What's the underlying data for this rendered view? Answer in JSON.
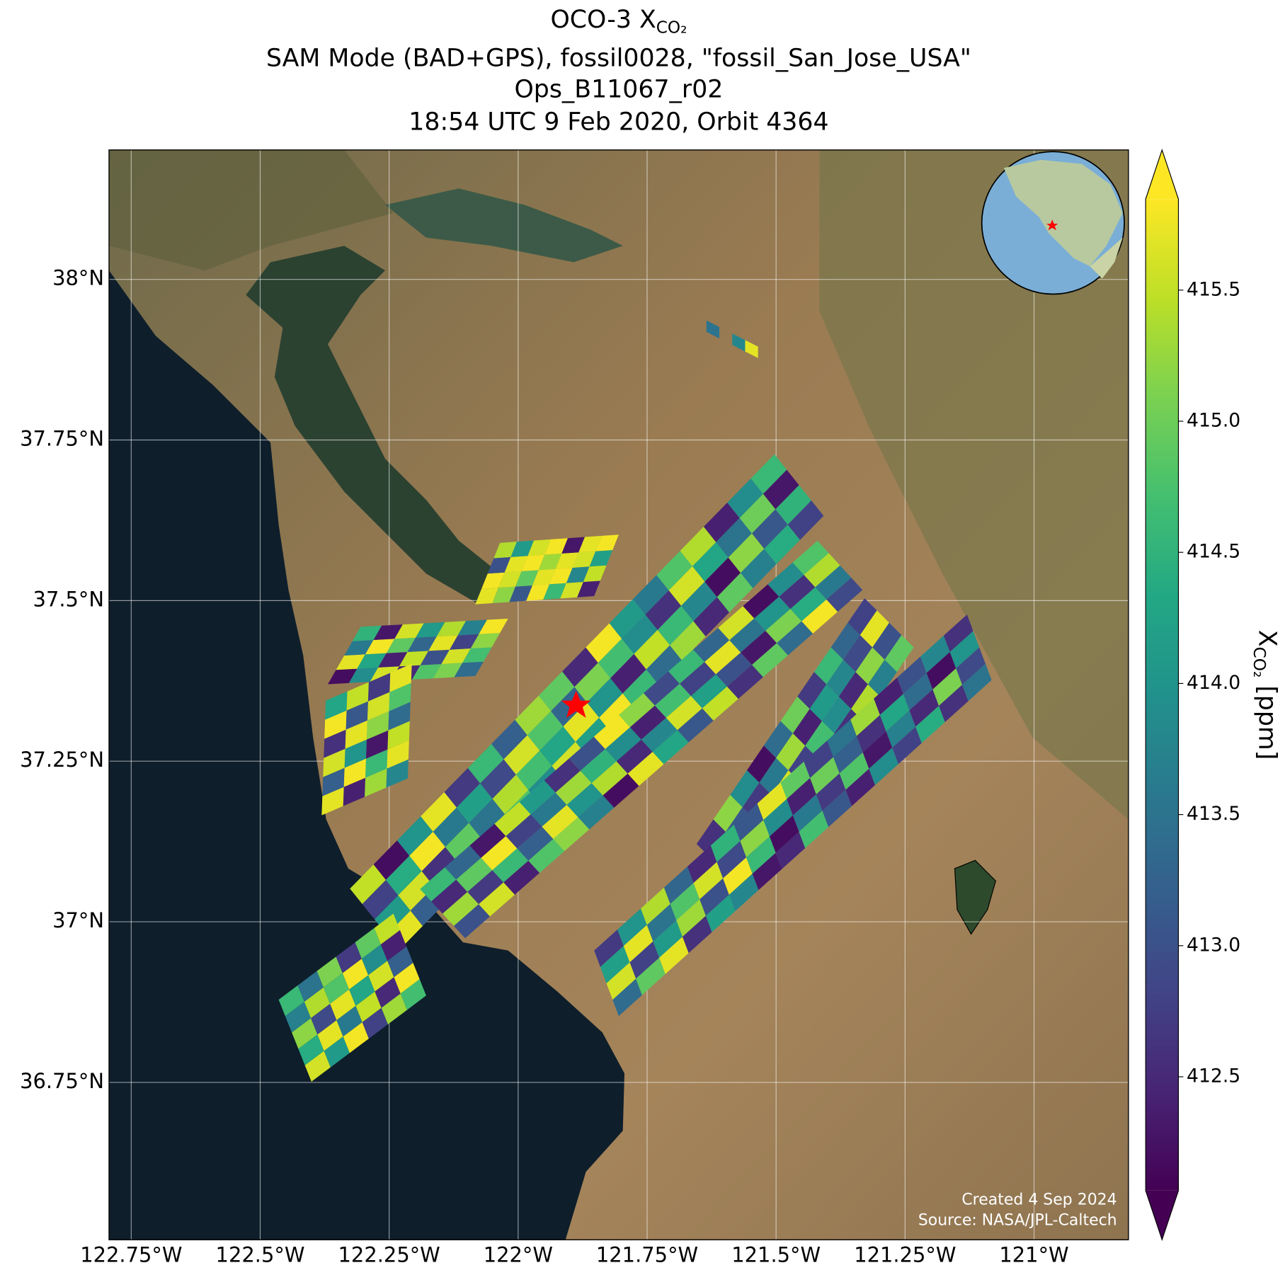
{
  "chart_data": {
    "type": "map",
    "title": [
      "OCO-3 X",
      "SAM Mode (BAD+GPS), fossil0028, \"fossil_San_Jose_USA\"",
      "Ops_B11067_r02",
      "18:54 UTC 9 Feb 2020, Orbit 4364"
    ],
    "title_subscript": "CO₂",
    "xlim": [
      -122.793,
      -120.817
    ],
    "ylim": [
      36.505,
      38.2015
    ],
    "xticks": [
      {
        "value": -122.75,
        "label": "122.75°W"
      },
      {
        "value": -122.5,
        "label": "122.5°W"
      },
      {
        "value": -122.25,
        "label": "122.25°W"
      },
      {
        "value": -122,
        "label": "122°W"
      },
      {
        "value": -121.75,
        "label": "121.75°W"
      },
      {
        "value": -121.5,
        "label": "121.5°W"
      },
      {
        "value": -121.25,
        "label": "121.25°W"
      },
      {
        "value": -121,
        "label": "121°W"
      }
    ],
    "yticks": [
      {
        "value": 36.75,
        "label": "36.75°N"
      },
      {
        "value": 37,
        "label": "37°N"
      },
      {
        "value": 37.25,
        "label": "37.25°N"
      },
      {
        "value": 37.5,
        "label": "37.5°N"
      },
      {
        "value": 37.75,
        "label": "37.75°N"
      },
      {
        "value": 38,
        "label": "38°N"
      }
    ],
    "grid": true,
    "colorbar": {
      "label": "X",
      "label_subscript": "CO₂",
      "label_unit": " [ppm]",
      "clim": [
        412.066,
        415.847
      ],
      "ticks": [
        415.5,
        {
          "value": 415,
          "label": "415.0"
        },
        414.5,
        {
          "value": 414,
          "label": "414.0"
        },
        413.5,
        {
          "value": 413,
          "label": "413.0"
        },
        412.5
      ]
    },
    "swaths": [
      {
        "values": [
          [
            415.7,
            415.2,
            413.1,
            415.8,
            414.6,
            415.6,
            412.4
          ],
          [
            415.8,
            415.6,
            414.9,
            415.7,
            415.8,
            413.8,
            415.5
          ],
          [
            413.0,
            415.7,
            415.8,
            415.3,
            415.7,
            415.6,
            414.2
          ],
          [
            415.4,
            414.1,
            415.6,
            415.8,
            412.3,
            415.7,
            415.8
          ]
        ]
      },
      {
        "values": [
          [
            412.2,
            413.9,
            415.6,
            412.5,
            414.8,
            415.1,
            413.4
          ],
          [
            415.7,
            414.3,
            412.4,
            415.5,
            413.0,
            415.6,
            414.7
          ],
          [
            413.6,
            415.8,
            414.9,
            413.3,
            415.7,
            412.8,
            415.2
          ],
          [
            414.5,
            412.3,
            415.6,
            414.1,
            415.4,
            413.7,
            415.8
          ]
        ]
      },
      {
        "values": [
          [
            415.7,
            412.4,
            415.3,
            413.8
          ],
          [
            413.2,
            415.8,
            414.6,
            415.7
          ],
          [
            415.6,
            414.0,
            412.3,
            415.5
          ],
          [
            412.6,
            415.7,
            415.2,
            413.4
          ],
          [
            415.8,
            413.1,
            415.6,
            414.8
          ],
          [
            414.3,
            415.5,
            412.7,
            415.7
          ]
        ]
      },
      {
        "values": [
          [
            415.7,
            413.2,
            414.5,
            412.3,
            415.1,
            414.8,
            413.9,
            415.6,
            414.2,
            415.8,
            414.6,
            413.4,
            415.3,
            412.5,
            414.9,
            413.7,
            414.4,
            412.8
          ],
          [
            414.1,
            415.6,
            412.6,
            414.9,
            413.5,
            415.4,
            414.7,
            414.3,
            415.7,
            414.0,
            412.4,
            415.5,
            414.6,
            413.8,
            412.2,
            415.2,
            413.1,
            414.5
          ],
          [
            412.8,
            414.4,
            415.8,
            413.6,
            414.2,
            412.9,
            415.6,
            414.8,
            413.3,
            415.1,
            414.7,
            413.9,
            412.6,
            415.6,
            414.3,
            413.5,
            415.0,
            412.3
          ],
          [
            415.5,
            412.2,
            414.0,
            415.7,
            412.7,
            414.6,
            413.2,
            415.3,
            414.9,
            412.5,
            415.8,
            414.1,
            413.6,
            414.8,
            415.4,
            412.4,
            413.9,
            414.6
          ]
        ]
      },
      {
        "values": [
          [
            413.0,
            415.6,
            412.4,
            414.8,
            415.2,
            413.7,
            412.2,
            415.7,
            414.3,
            413.1,
            415.5,
            412.6,
            414.9,
            413.4,
            415.8,
            412.9
          ],
          [
            415.3,
            412.7,
            414.6,
            413.2,
            415.7,
            414.0,
            415.4,
            412.5,
            413.8,
            415.6,
            414.2,
            413.0,
            412.3,
            415.1,
            414.4,
            413.6
          ],
          [
            412.5,
            414.9,
            415.8,
            412.8,
            413.6,
            415.3,
            414.5,
            413.9,
            412.4,
            414.7,
            412.8,
            415.7,
            413.5,
            414.0,
            412.6,
            415.4
          ],
          [
            414.6,
            413.3,
            412.3,
            415.5,
            414.1,
            412.6,
            413.0,
            415.8,
            415.2,
            412.9,
            414.6,
            413.3,
            415.6,
            412.2,
            413.9,
            414.8
          ]
        ]
      },
      {
        "values": [
          [
            412.4,
            413.8,
            415.1,
            412.9,
            414.5,
            413.2,
            412.6,
            415.4,
            413.7,
            414.9
          ],
          [
            413.5,
            412.3,
            414.2,
            415.6,
            412.8,
            414.7,
            413.9,
            412.5,
            415.2,
            413.0
          ],
          [
            414.8,
            413.1,
            412.7,
            413.6,
            415.3,
            412.4,
            414.1,
            413.8,
            412.9,
            415.7
          ],
          [
            412.6,
            415.2,
            413.9,
            412.2,
            413.4,
            415.0,
            412.7,
            414.6,
            413.3,
            412.8
          ]
        ]
      },
      {
        "values": [
          [
            413.4,
            414.9,
            415.7,
            412.6,
            414.2,
            413.8,
            412.3,
            412.5,
            414.7,
            413.1,
            412.4,
            413.9,
            412.8,
            414.4,
            412.6,
            413.5
          ],
          [
            415.6,
            412.8,
            414.1,
            415.3,
            413.0,
            415.8,
            414.6,
            412.2,
            413.6,
            412.7,
            414.8,
            412.3,
            413.7,
            412.5,
            415.1,
            412.9
          ],
          [
            414.2,
            415.7,
            413.5,
            414.8,
            415.6,
            412.9,
            415.2,
            413.9,
            412.4,
            415.0,
            413.2,
            412.6,
            414.3,
            413.4,
            412.2,
            414.0
          ],
          [
            412.7,
            414.0,
            415.4,
            413.3,
            412.5,
            414.5,
            413.1,
            415.7,
            414.9,
            412.8,
            413.5,
            415.3,
            412.4,
            413.0,
            413.8,
            412.6
          ]
        ]
      },
      {
        "values": [
          [
            415.6,
            414.1,
            415.8,
            412.8,
            415.3,
            414.7
          ],
          [
            414.4,
            415.7,
            413.6,
            415.5,
            412.5,
            415.8
          ],
          [
            415.2,
            412.9,
            415.7,
            414.3,
            415.6,
            413.2
          ],
          [
            413.7,
            415.4,
            414.8,
            415.8,
            413.9,
            412.4
          ],
          [
            414.6,
            413.5,
            415.1,
            412.7,
            414.9,
            415.5
          ]
        ]
      },
      {
        "values": [
          [
            413.5,
            null,
            413.8,
            415.7
          ]
        ]
      }
    ],
    "footnote": [
      "Created 4 Sep 2024",
      "Source: NASA/JPL-Caltech"
    ]
  }
}
